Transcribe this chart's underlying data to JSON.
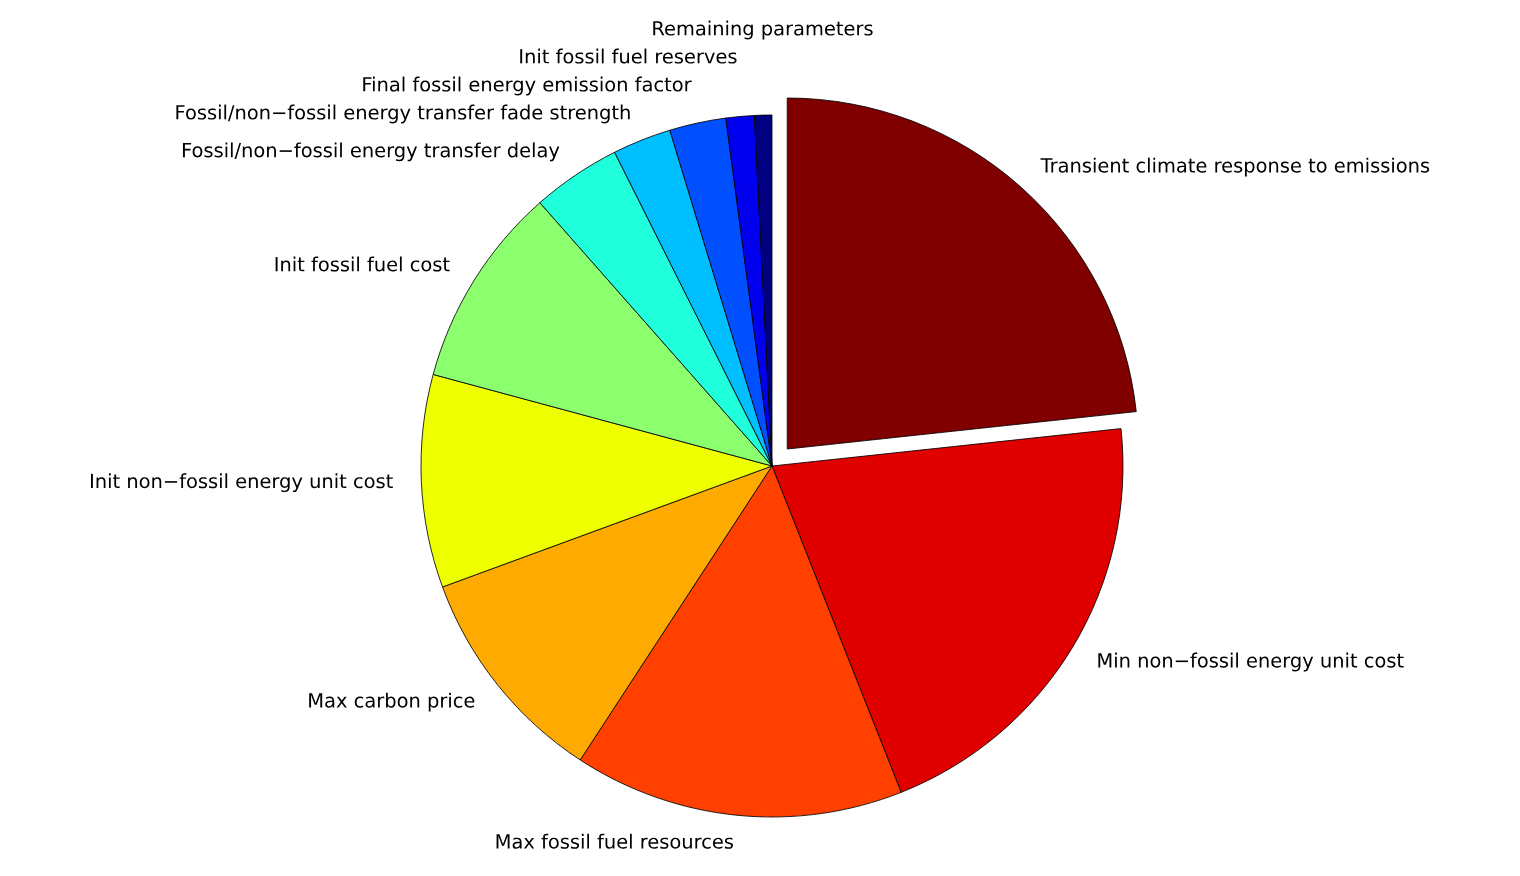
{
  "chart_data": {
    "type": "pie",
    "categories": [
      "Transient climate response to emissions",
      "Min non−fossil energy unit cost",
      "Max fossil fuel resources",
      "Max carbon price",
      "Init non−fossil energy unit cost",
      "Init fossil fuel cost",
      "Fossil/non−fossil energy transfer delay",
      "Fossil/non−fossil energy transfer fade strength",
      "Final fossil energy emission factor",
      "Init fossil fuel reserves",
      "Remaining parameters"
    ],
    "values": [
      23.3,
      20.7,
      15.2,
      10.2,
      9.8,
      9.3,
      4.1,
      2.7,
      2.6,
      1.3,
      0.8
    ],
    "colors": [
      "#800000",
      "#e00000",
      "#ff4000",
      "#ffaa00",
      "#eeff00",
      "#8cff6e",
      "#20ffdc",
      "#00bfff",
      "#0050ff",
      "#0000ee",
      "#000080"
    ],
    "legend": false
  }
}
